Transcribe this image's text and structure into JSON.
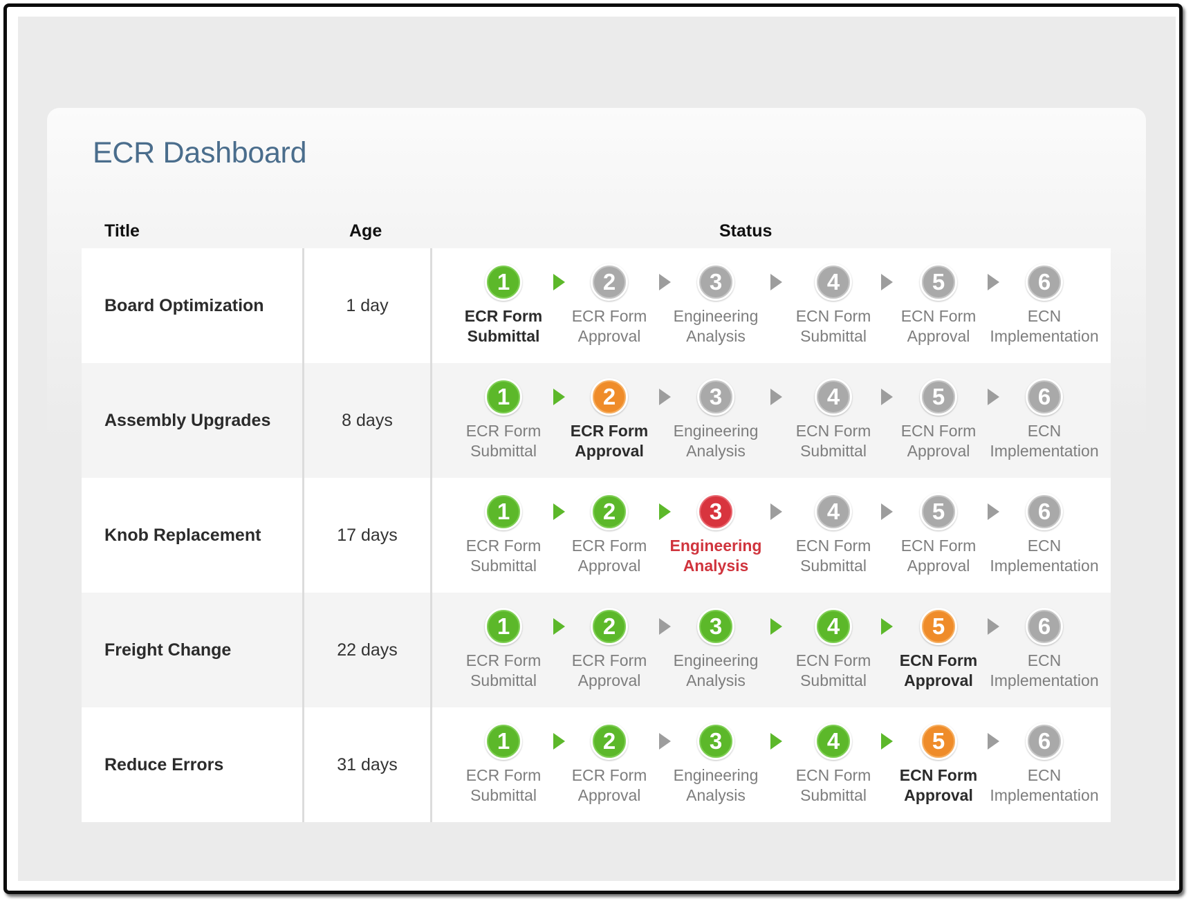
{
  "dashboard": {
    "title": "ECR Dashboard",
    "columns": {
      "title": "Title",
      "age": "Age",
      "status": "Status"
    }
  },
  "stage_labels": [
    [
      "ECR Form",
      "Submittal"
    ],
    [
      "ECR Form",
      "Approval"
    ],
    [
      "Engineering",
      "Analysis"
    ],
    [
      "ECN Form",
      "Submittal"
    ],
    [
      "ECN Form",
      "Approval"
    ],
    [
      "ECN",
      "Implementation"
    ]
  ],
  "rows": [
    {
      "title": "Board Optimization",
      "age": "1 day",
      "steps": [
        {
          "n": "1",
          "state": "done",
          "label_style": "current"
        },
        {
          "n": "2",
          "state": "pending",
          "label_style": "done"
        },
        {
          "n": "3",
          "state": "pending",
          "label_style": "done"
        },
        {
          "n": "4",
          "state": "pending",
          "label_style": "done"
        },
        {
          "n": "5",
          "state": "pending",
          "label_style": "done"
        },
        {
          "n": "6",
          "state": "pending",
          "label_style": "done"
        }
      ],
      "arrows": [
        "green",
        "gray",
        "gray",
        "gray",
        "gray"
      ]
    },
    {
      "title": "Assembly Upgrades",
      "age": "8 days",
      "steps": [
        {
          "n": "1",
          "state": "done",
          "label_style": "done"
        },
        {
          "n": "2",
          "state": "current",
          "label_style": "current"
        },
        {
          "n": "3",
          "state": "pending",
          "label_style": "done"
        },
        {
          "n": "4",
          "state": "pending",
          "label_style": "done"
        },
        {
          "n": "5",
          "state": "pending",
          "label_style": "done"
        },
        {
          "n": "6",
          "state": "pending",
          "label_style": "done"
        }
      ],
      "arrows": [
        "green",
        "gray",
        "gray",
        "gray",
        "gray"
      ]
    },
    {
      "title": "Knob Replacement",
      "age": "17 days",
      "steps": [
        {
          "n": "1",
          "state": "done",
          "label_style": "done"
        },
        {
          "n": "2",
          "state": "done",
          "label_style": "done"
        },
        {
          "n": "3",
          "state": "error",
          "label_style": "error"
        },
        {
          "n": "4",
          "state": "pending",
          "label_style": "done"
        },
        {
          "n": "5",
          "state": "pending",
          "label_style": "done"
        },
        {
          "n": "6",
          "state": "pending",
          "label_style": "done"
        }
      ],
      "arrows": [
        "green",
        "green",
        "gray",
        "gray",
        "gray"
      ]
    },
    {
      "title": "Freight Change",
      "age": "22 days",
      "steps": [
        {
          "n": "1",
          "state": "done",
          "label_style": "done"
        },
        {
          "n": "2",
          "state": "done",
          "label_style": "done"
        },
        {
          "n": "3",
          "state": "done",
          "label_style": "done"
        },
        {
          "n": "4",
          "state": "done",
          "label_style": "done"
        },
        {
          "n": "5",
          "state": "current",
          "label_style": "current"
        },
        {
          "n": "6",
          "state": "pending",
          "label_style": "done"
        }
      ],
      "arrows": [
        "green",
        "gray",
        "green",
        "green",
        "gray"
      ]
    },
    {
      "title": "Reduce Errors",
      "age": "31 days",
      "steps": [
        {
          "n": "1",
          "state": "done",
          "label_style": "done"
        },
        {
          "n": "2",
          "state": "done",
          "label_style": "done"
        },
        {
          "n": "3",
          "state": "done",
          "label_style": "done"
        },
        {
          "n": "4",
          "state": "done",
          "label_style": "done"
        },
        {
          "n": "5",
          "state": "current",
          "label_style": "current"
        },
        {
          "n": "6",
          "state": "pending",
          "label_style": "done"
        }
      ],
      "arrows": [
        "green",
        "gray",
        "green",
        "green",
        "gray"
      ]
    }
  ],
  "colors": {
    "title_blue": "#4a6d8c",
    "done_green": "#5cb82a",
    "pending_gray": "#a9a9a9",
    "current_orange": "#ef8c2a",
    "error_red": "#d8343e"
  }
}
